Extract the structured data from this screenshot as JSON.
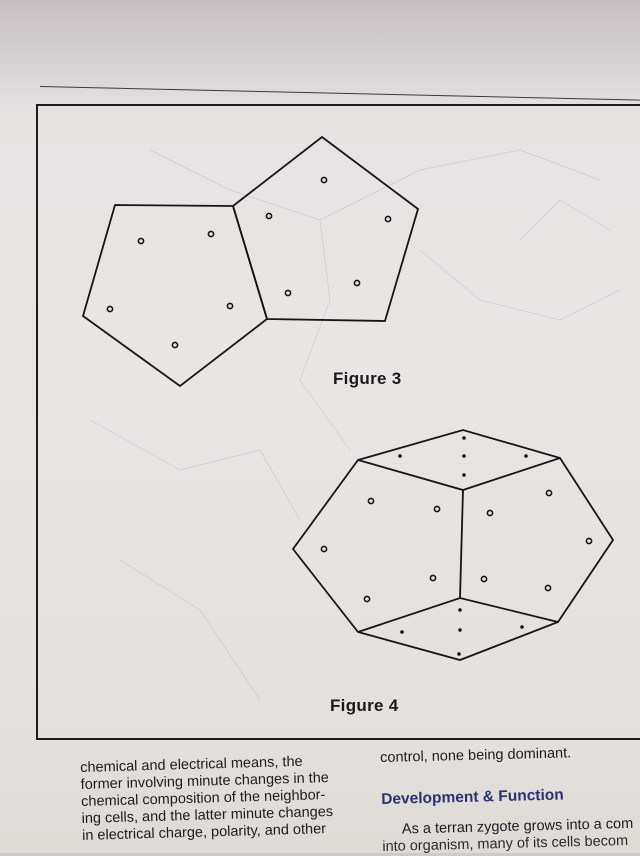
{
  "figures": {
    "figure3_caption": "Figure 3",
    "figure4_caption": "Figure 4"
  },
  "left_column": {
    "lines": [
      "chemical and electrical means, the",
      "former involving minute changes in the",
      "chemical composition of the neighbor-",
      "ing cells, and the latter minute changes",
      "in electrical charge, polarity, and other"
    ]
  },
  "right_column": {
    "line1": "control, none being dominant.",
    "heading": "Development & Function",
    "para_line1": "As a terran zygote grows into a com",
    "para_line2": "into organism, many of its cells becom"
  },
  "colors": {
    "paper": "#e8e6e5",
    "ink": "#1c1c1c",
    "heading": "#2b3270"
  }
}
